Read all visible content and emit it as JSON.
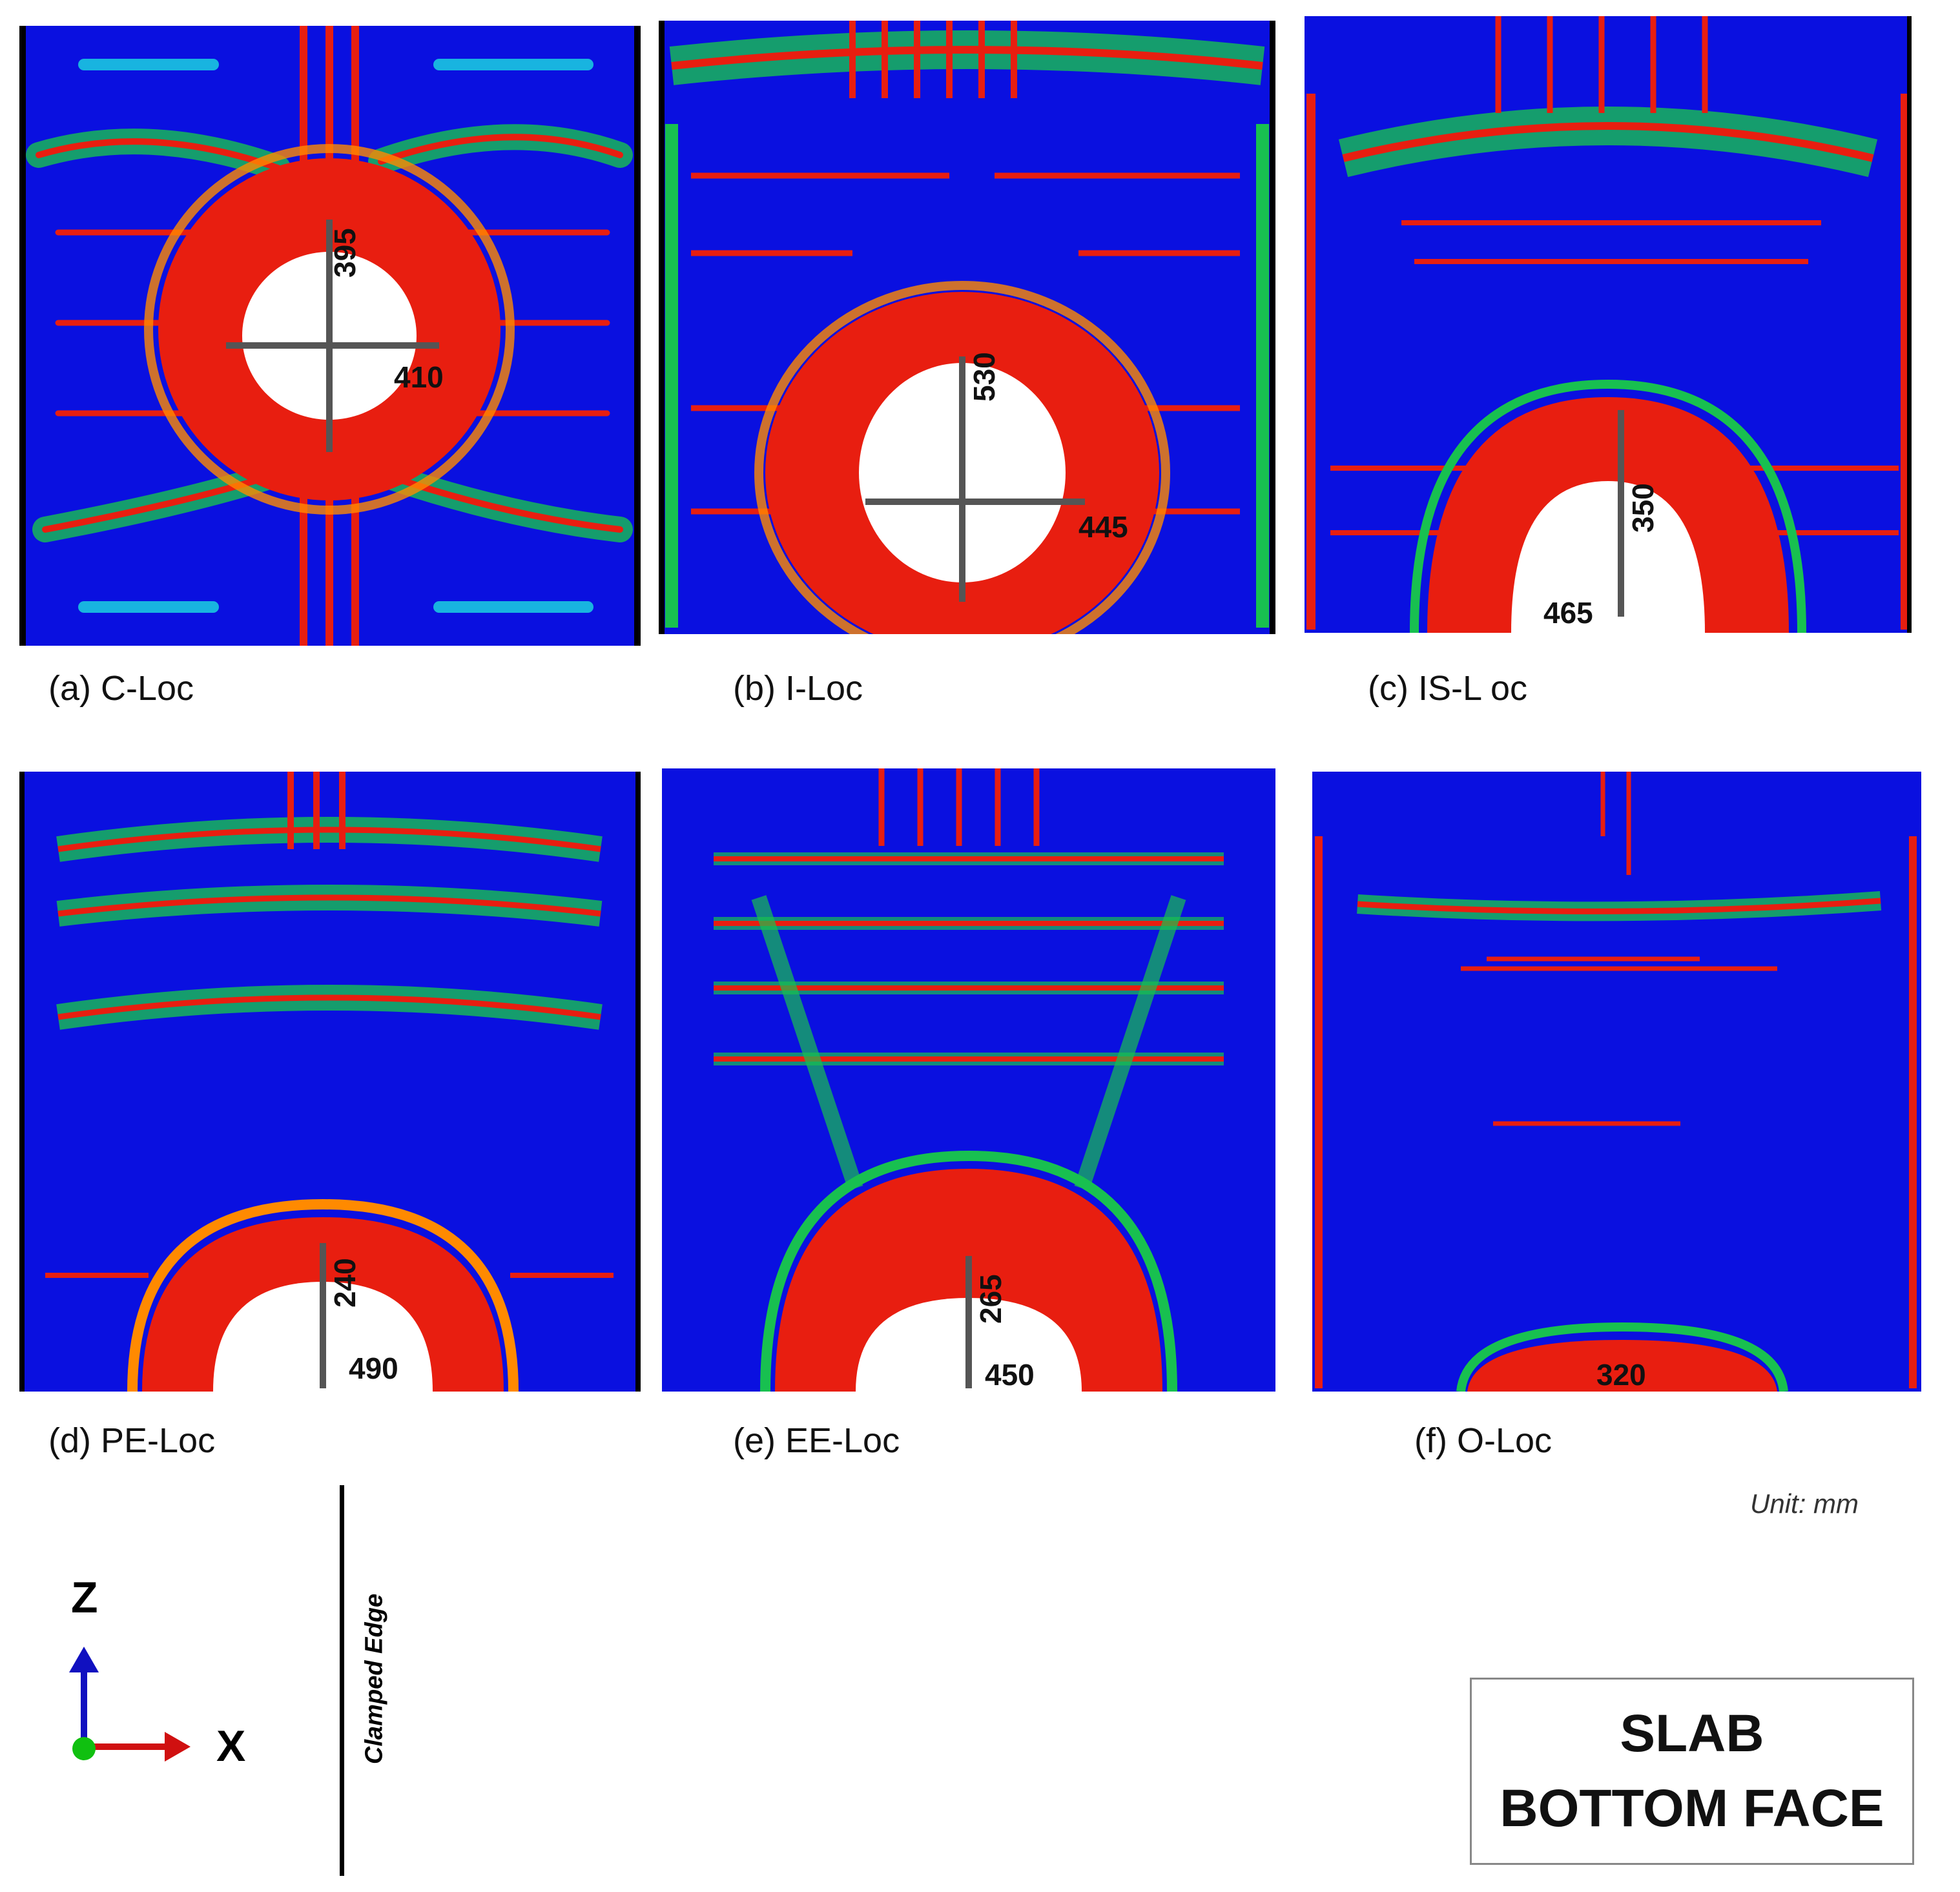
{
  "panels": [
    {
      "id": "a",
      "caption": "(a) C-Loc",
      "dims": [
        "395",
        "410"
      ]
    },
    {
      "id": "b",
      "caption": "(b) I-Loc",
      "dims": [
        "530",
        "445"
      ]
    },
    {
      "id": "c",
      "caption": "(c) IS-L oc",
      "dims": [
        "350",
        "465"
      ]
    },
    {
      "id": "d",
      "caption": "(d) PE-Loc",
      "dims": [
        "240",
        "490"
      ]
    },
    {
      "id": "e",
      "caption": "(e) EE-Loc",
      "dims": [
        "265",
        "450"
      ]
    },
    {
      "id": "f",
      "caption": "(f) O-Loc",
      "dims": [
        "320"
      ]
    }
  ],
  "unit_note": "Unit: mm",
  "axes": {
    "vertical": "Z",
    "horizontal": "X"
  },
  "clamped_edge_label": "Clamped Edge",
  "legend_box": {
    "line1": "SLAB",
    "line2": "BOTTOM FACE"
  },
  "colors": {
    "background_field": "#0a10e0",
    "damage_red": "#e81e10",
    "damage_orange": "#ff8a00",
    "damage_green": "#18c050",
    "damage_cyan": "#18b4e0",
    "breach": "#ffffff",
    "dimension_arrow": "#555555",
    "axis_z": "#1010c0",
    "axis_x": "#d01010",
    "axis_y": "#10c010"
  }
}
